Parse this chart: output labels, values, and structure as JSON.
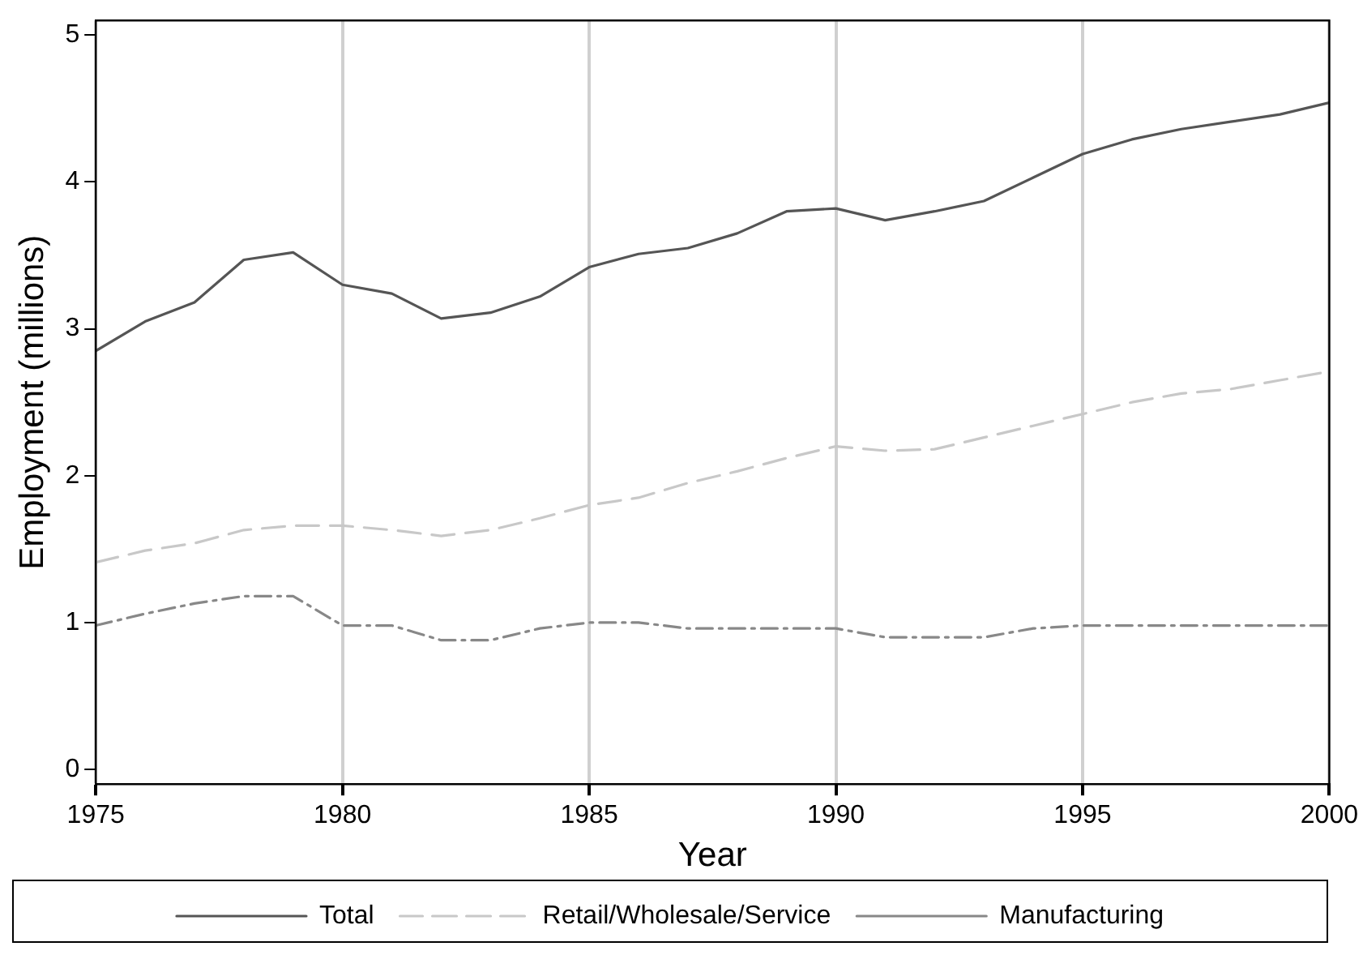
{
  "chart_data": {
    "type": "line",
    "xlabel": "Year",
    "ylabel": "Employment (millions)",
    "x": [
      1975,
      1976,
      1977,
      1978,
      1979,
      1980,
      1981,
      1982,
      1983,
      1984,
      1985,
      1986,
      1987,
      1988,
      1989,
      1990,
      1991,
      1992,
      1993,
      1994,
      1995,
      1996,
      1997,
      1998,
      1999,
      2000
    ],
    "xlim": [
      1975,
      2000
    ],
    "xticks": [
      1975,
      1980,
      1985,
      1990,
      1995,
      2000
    ],
    "ylim": [
      -0.1,
      5.1
    ],
    "yticks": [
      0,
      1,
      2,
      3,
      4,
      5
    ],
    "grid": "x",
    "legend": "bottom",
    "marker": "none",
    "series": [
      {
        "name": "Total",
        "color": "#555555",
        "line_style": "solid",
        "values": [
          2.85,
          3.05,
          3.18,
          3.47,
          3.52,
          3.3,
          3.24,
          3.07,
          3.11,
          3.22,
          3.42,
          3.51,
          3.55,
          3.65,
          3.8,
          3.82,
          3.74,
          3.8,
          3.87,
          4.03,
          4.19,
          4.29,
          4.36,
          4.41,
          4.46,
          4.54
        ]
      },
      {
        "name": "Retail/Wholesale/Service",
        "color": "#c8c8c8",
        "line_style": "dashed",
        "values": [
          1.41,
          1.49,
          1.54,
          1.63,
          1.66,
          1.66,
          1.63,
          1.59,
          1.63,
          1.71,
          1.8,
          1.85,
          1.95,
          2.03,
          2.12,
          2.2,
          2.17,
          2.18,
          2.26,
          2.34,
          2.42,
          2.5,
          2.56,
          2.59,
          2.65,
          2.71
        ]
      },
      {
        "name": "Manufacturing",
        "color": "#888888",
        "line_style": "dashdot",
        "values": [
          0.98,
          1.06,
          1.13,
          1.18,
          1.18,
          0.98,
          0.98,
          0.88,
          0.88,
          0.96,
          1.0,
          1.0,
          0.96,
          0.96,
          0.96,
          0.96,
          0.9,
          0.9,
          0.9,
          0.96,
          0.98,
          0.98,
          0.98,
          0.98,
          0.98,
          0.98
        ]
      }
    ]
  }
}
